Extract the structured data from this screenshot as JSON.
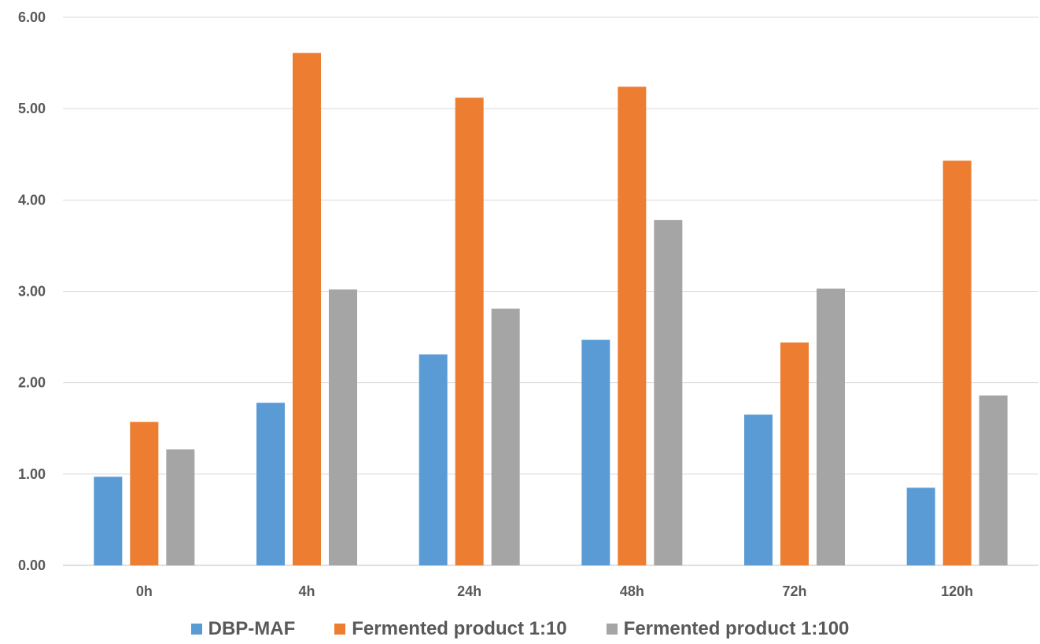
{
  "chart_data": {
    "type": "bar",
    "title": "",
    "xlabel": "",
    "ylabel": "",
    "categories": [
      "0h",
      "4h",
      "24h",
      "48h",
      "72h",
      "120h"
    ],
    "ylim": [
      0,
      6
    ],
    "yticks": [
      "0.00",
      "1.00",
      "2.00",
      "3.00",
      "4.00",
      "5.00",
      "6.00"
    ],
    "grid": true,
    "legend_position": "bottom",
    "series": [
      {
        "name": "DBP-MAF",
        "color": "#5b9bd5",
        "values": [
          0.97,
          1.78,
          2.31,
          2.47,
          1.65,
          0.85
        ]
      },
      {
        "name": "Fermented product 1:10",
        "color": "#ed7d31",
        "values": [
          1.57,
          5.61,
          5.12,
          5.24,
          2.44,
          4.43
        ]
      },
      {
        "name": "Fermented product 1:100",
        "color": "#a5a5a5",
        "values": [
          1.27,
          3.02,
          2.81,
          3.78,
          3.03,
          1.86
        ]
      }
    ]
  }
}
